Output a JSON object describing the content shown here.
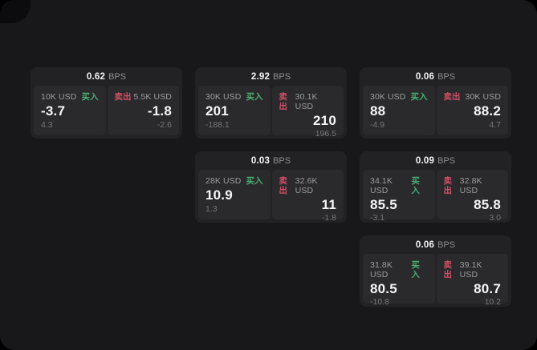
{
  "labels": {
    "bps": "BPS",
    "buy": "买入",
    "sell": "卖出"
  },
  "colors": {
    "background": "#18181a",
    "card": "#222225",
    "panel": "#2a2a2d",
    "buy_green": "#4aac72",
    "sell_red": "#d14f66",
    "text_primary": "#f5f5f6",
    "text_secondary": "#9b9ba0",
    "text_dim": "#76767b"
  },
  "cards": [
    {
      "bps": "0.62",
      "buy": {
        "amount": "10K USD",
        "value": "-3.7",
        "delta": "4.3"
      },
      "sell": {
        "amount": "5.5K USD",
        "value": "-1.8",
        "delta": "-2.6"
      }
    },
    {
      "bps": "2.92",
      "buy": {
        "amount": "30K USD",
        "value": "201",
        "delta": "-188.1"
      },
      "sell": {
        "amount": "30.1K USD",
        "value": "210",
        "delta": "196.5"
      }
    },
    {
      "bps": "0.06",
      "buy": {
        "amount": "30K USD",
        "value": "88",
        "delta": "-4.9"
      },
      "sell": {
        "amount": "30K USD",
        "value": "88.2",
        "delta": "4.7"
      }
    },
    {
      "bps": "0.03",
      "buy": {
        "amount": "28K USD",
        "value": "10.9",
        "delta": "1.3"
      },
      "sell": {
        "amount": "32.6K USD",
        "value": "11",
        "delta": "-1.8"
      }
    },
    {
      "bps": "0.09",
      "buy": {
        "amount": "34.1K USD",
        "value": "85.5",
        "delta": "-3.1"
      },
      "sell": {
        "amount": "32.8K USD",
        "value": "85.8",
        "delta": "3.0"
      }
    },
    {
      "bps": "0.06",
      "buy": {
        "amount": "31.8K USD",
        "value": "80.5",
        "delta": "-10.8"
      },
      "sell": {
        "amount": "39.1K USD",
        "value": "80.7",
        "delta": "10.2"
      }
    }
  ]
}
